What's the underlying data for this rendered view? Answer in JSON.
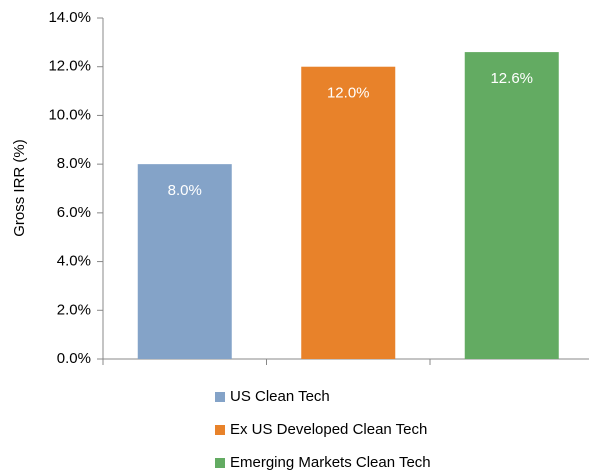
{
  "chart_data": {
    "type": "bar",
    "y_label": "Gross IRR (%)",
    "categories": [
      null,
      null,
      null
    ],
    "series": [
      {
        "name": "US Clean Tech",
        "color": "#84a3c8",
        "values": [
          8.0,
          null,
          null
        ],
        "value_labels": [
          "8.0%",
          null,
          null
        ]
      },
      {
        "name": "Ex US Developed Clean Tech",
        "color": "#e8822a",
        "values": [
          null,
          12.0,
          null
        ],
        "value_labels": [
          null,
          "12.0%",
          null
        ]
      },
      {
        "name": "Emerging Markets Clean Tech",
        "color": "#63ab62",
        "values": [
          null,
          null,
          12.6
        ],
        "value_labels": [
          null,
          null,
          "12.6%"
        ]
      }
    ],
    "ylim": [
      0,
      14
    ],
    "yticks": [
      {
        "value": 0,
        "label": "0.0%"
      },
      {
        "value": 2,
        "label": "2.0%"
      },
      {
        "value": 4,
        "label": "4.0%"
      },
      {
        "value": 6,
        "label": "6.0%"
      },
      {
        "value": 8,
        "label": "8.0%"
      },
      {
        "value": 10,
        "label": "10.0%"
      },
      {
        "value": 12,
        "label": "12.0%"
      },
      {
        "value": 14,
        "label": "14.0%"
      }
    ],
    "grid": false,
    "legend": "bottom"
  }
}
